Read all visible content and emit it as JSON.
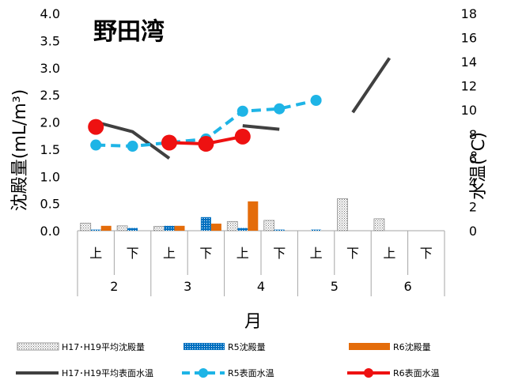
{
  "chart_data": {
    "type": "bar",
    "title": "野田湾",
    "xlabel": "月",
    "ylabel": "沈殿量(mL/m³)",
    "y2label": "水温(℃)",
    "ylim": [
      0,
      4.0
    ],
    "y2lim": [
      0,
      18
    ],
    "yticks": [
      "0.0",
      "0.5",
      "1.0",
      "1.5",
      "2.0",
      "2.5",
      "3.0",
      "3.5",
      "4.0"
    ],
    "y2ticks": [
      "0",
      "2",
      "4",
      "6",
      "8",
      "10",
      "12",
      "14",
      "16",
      "18"
    ],
    "categories": [
      "上",
      "下",
      "上",
      "下",
      "上",
      "下",
      "上",
      "下",
      "上",
      "下"
    ],
    "months": [
      "2",
      "3",
      "4",
      "5",
      "6"
    ],
    "bar_series": [
      {
        "name": "H17･H19平均沈殿量",
        "color": "#b0b0b0",
        "values": [
          0.14,
          0.09,
          0.08,
          0.0,
          0.17,
          0.19,
          0.0,
          0.59,
          0.22,
          0.0
        ]
      },
      {
        "name": "R5沈殿量",
        "color": "#0070c0",
        "values": [
          0.02,
          0.05,
          0.09,
          0.25,
          0.05,
          0.02,
          0.02,
          0.0,
          0.0,
          0.0
        ]
      },
      {
        "name": "R6沈殿量",
        "color": "#e46c0a",
        "values": [
          0.09,
          0.0,
          0.09,
          0.13,
          0.54,
          0.0,
          0.0,
          0.0,
          0.0,
          0.0
        ]
      }
    ],
    "line_series": [
      {
        "name": "H17･H19平均表面水温",
        "color": "#404040",
        "style": "solid",
        "segments": [
          [
            [
              0,
              9.0
            ],
            [
              1,
              8.2
            ],
            [
              2,
              6.0
            ]
          ],
          [
            [
              4,
              8.7
            ],
            [
              5,
              8.4
            ]
          ],
          [
            [
              7,
              9.8
            ],
            [
              8,
              14.3
            ]
          ]
        ]
      },
      {
        "name": "R5表面水温",
        "color": "#1eb4e6",
        "style": "dashed",
        "values": [
          7.1,
          7.0,
          7.3,
          7.6,
          9.9,
          10.1,
          10.8,
          null,
          null,
          null
        ]
      },
      {
        "name": "R6表面水温",
        "color": "#ee1111",
        "style": "solid",
        "values": [
          8.6,
          null,
          7.3,
          7.2,
          7.8,
          null,
          null,
          null,
          null,
          null
        ]
      }
    ],
    "legend_position": "bottom"
  }
}
